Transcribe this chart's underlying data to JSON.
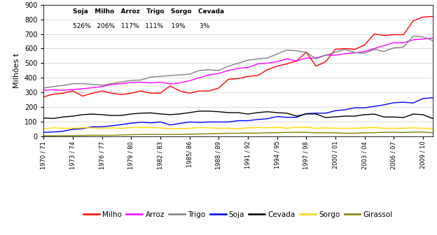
{
  "ylabel": "Milhões t",
  "ylim": [
    0,
    900
  ],
  "yticks": [
    0,
    100,
    200,
    300,
    400,
    500,
    600,
    700,
    800,
    900
  ],
  "xtick_labels": [
    "1970 / 71",
    "1973 / 74",
    "1976 / 77",
    "1979 / 80",
    "1982 / 83",
    "1985/ 86",
    "1988 / 89",
    "1991 / 92",
    "1994 / 95",
    "1997 / 98",
    "2000 / 01",
    "2003 / 04",
    "2006 / 07",
    "2009 / 10"
  ],
  "xtick_positions": [
    0,
    3,
    6,
    9,
    12,
    15,
    18,
    21,
    24,
    27,
    30,
    33,
    36,
    39
  ],
  "series": {
    "Milho": {
      "color": "#FF0000",
      "values": [
        270,
        288,
        295,
        310,
        275,
        295,
        310,
        295,
        285,
        295,
        310,
        295,
        295,
        345,
        310,
        295,
        310,
        310,
        330,
        390,
        395,
        410,
        415,
        455,
        480,
        495,
        515,
        575,
        480,
        510,
        595,
        600,
        595,
        625,
        700,
        690,
        695,
        695,
        790,
        815,
        820
      ]
    },
    "Arroz": {
      "color": "#FF00FF",
      "values": [
        315,
        318,
        315,
        320,
        325,
        332,
        340,
        355,
        360,
        368,
        370,
        365,
        370,
        358,
        365,
        380,
        400,
        420,
        430,
        450,
        465,
        470,
        495,
        500,
        510,
        530,
        515,
        535,
        535,
        555,
        555,
        565,
        570,
        580,
        600,
        620,
        640,
        640,
        660,
        665,
        672
      ]
    },
    "Trigo": {
      "color": "#808080",
      "values": [
        330,
        340,
        348,
        360,
        360,
        355,
        350,
        360,
        372,
        382,
        385,
        405,
        410,
        415,
        420,
        425,
        450,
        455,
        450,
        480,
        500,
        520,
        530,
        535,
        563,
        590,
        585,
        575,
        530,
        555,
        575,
        595,
        572,
        568,
        595,
        580,
        605,
        610,
        685,
        680,
        655
      ]
    },
    "Soja": {
      "color": "#0000FF",
      "values": [
        27,
        30,
        35,
        48,
        52,
        65,
        65,
        72,
        80,
        90,
        96,
        92,
        98,
        78,
        88,
        98,
        95,
        98,
        98,
        98,
        107,
        107,
        115,
        120,
        135,
        130,
        130,
        155,
        158,
        158,
        175,
        182,
        195,
        195,
        205,
        215,
        230,
        233,
        228,
        258,
        264
      ]
    },
    "Cevada": {
      "color": "#000000",
      "values": [
        125,
        122,
        132,
        138,
        148,
        152,
        148,
        142,
        143,
        153,
        158,
        160,
        153,
        148,
        153,
        162,
        172,
        172,
        168,
        162,
        162,
        152,
        162,
        168,
        162,
        158,
        138,
        153,
        153,
        128,
        133,
        138,
        138,
        148,
        152,
        132,
        132,
        128,
        152,
        148,
        122
      ]
    },
    "Sorgo": {
      "color": "#FFD700",
      "values": [
        52,
        58,
        55,
        55,
        58,
        58,
        55,
        58,
        55,
        60,
        62,
        60,
        58,
        52,
        52,
        55,
        60,
        58,
        55,
        55,
        52,
        58,
        60,
        58,
        62,
        55,
        62,
        62,
        55,
        58,
        55,
        55,
        55,
        58,
        60,
        55,
        55,
        55,
        58,
        55,
        52
      ]
    },
    "Girassol": {
      "color": "#808000",
      "values": [
        4,
        4,
        5,
        5,
        6,
        7,
        7,
        7,
        9,
        11,
        12,
        13,
        13,
        12,
        13,
        14,
        16,
        17,
        19,
        21,
        21,
        22,
        22,
        24,
        25,
        27,
        27,
        27,
        24,
        24,
        24,
        21,
        21,
        24,
        25,
        27,
        28,
        26,
        29,
        29,
        24
      ]
    }
  },
  "legend_order": [
    "Milho",
    "Arroz",
    "Trigo",
    "Soja",
    "Cevada",
    "Sorgo",
    "Girassol"
  ],
  "background_color": "#FFFFFF"
}
